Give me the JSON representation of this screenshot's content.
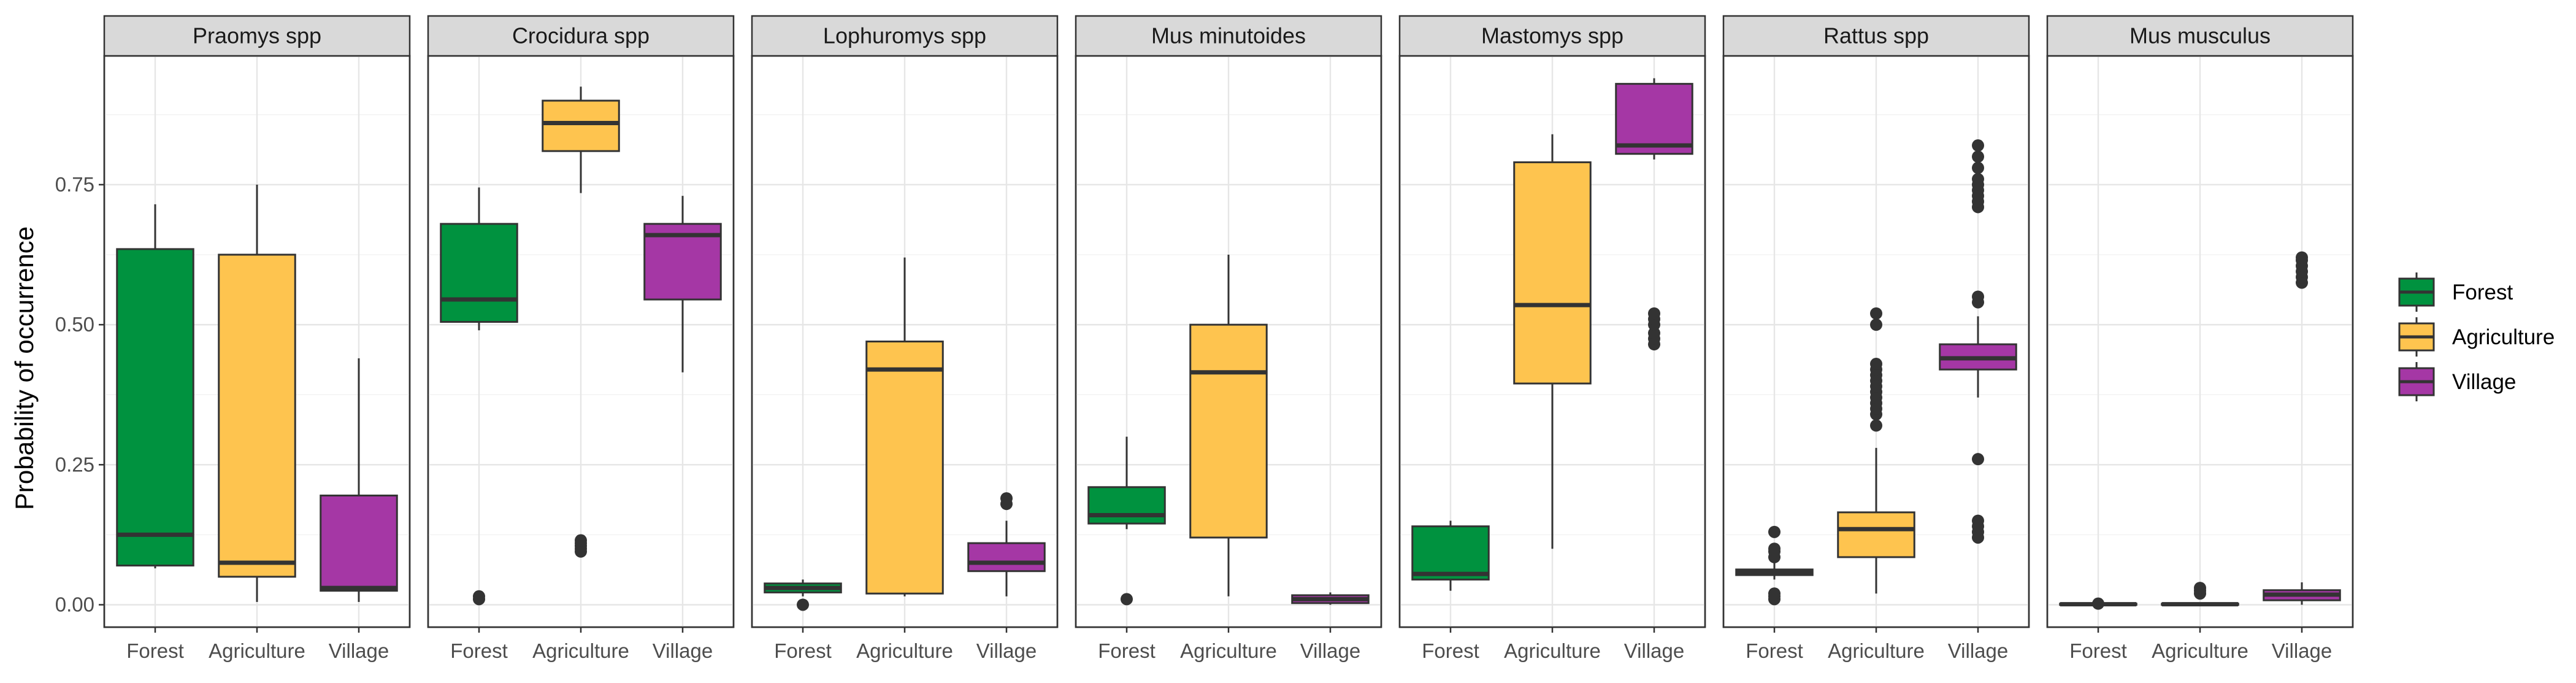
{
  "chart_data": {
    "type": "boxplot",
    "ylabel": "Probability of occurrence",
    "xlabel": "",
    "ylim": [
      -0.04,
      0.98
    ],
    "yticks": [
      0.0,
      0.25,
      0.5,
      0.75
    ],
    "ytick_labels": [
      "0.00",
      "0.25",
      "0.50",
      "0.75"
    ],
    "categories": [
      "Forest",
      "Agriculture",
      "Village"
    ],
    "colors": {
      "Forest": "#00923F",
      "Agriculture": "#FEC44F",
      "Village": "#A537A5"
    },
    "grid": true,
    "legend_position": "right",
    "legend": [
      {
        "label": "Forest",
        "color": "#00923F"
      },
      {
        "label": "Agriculture",
        "color": "#FEC44F"
      },
      {
        "label": "Village",
        "color": "#A537A5"
      }
    ],
    "panels": [
      {
        "title": "Praomys spp",
        "boxes": [
          {
            "category": "Forest",
            "q1": 0.07,
            "median": 0.125,
            "q3": 0.635,
            "whislo": 0.065,
            "whishi": 0.715,
            "outliers": []
          },
          {
            "category": "Agriculture",
            "q1": 0.05,
            "median": 0.075,
            "q3": 0.625,
            "whislo": 0.005,
            "whishi": 0.75,
            "outliers": []
          },
          {
            "category": "Village",
            "q1": 0.025,
            "median": 0.03,
            "q3": 0.195,
            "whislo": 0.005,
            "whishi": 0.44,
            "outliers": []
          }
        ]
      },
      {
        "title": "Crocidura spp",
        "boxes": [
          {
            "category": "Forest",
            "q1": 0.505,
            "median": 0.545,
            "q3": 0.68,
            "whislo": 0.49,
            "whishi": 0.745,
            "outliers": [
              0.01,
              0.015
            ]
          },
          {
            "category": "Agriculture",
            "q1": 0.81,
            "median": 0.86,
            "q3": 0.9,
            "whislo": 0.735,
            "whishi": 0.925,
            "outliers": [
              0.095,
              0.1,
              0.105,
              0.11,
              0.115
            ]
          },
          {
            "category": "Village",
            "q1": 0.545,
            "median": 0.66,
            "q3": 0.68,
            "whislo": 0.415,
            "whishi": 0.73,
            "outliers": []
          }
        ]
      },
      {
        "title": "Lophuromys spp",
        "boxes": [
          {
            "category": "Forest",
            "q1": 0.022,
            "median": 0.03,
            "q3": 0.038,
            "whislo": 0.015,
            "whishi": 0.045,
            "outliers": [
              0.0
            ]
          },
          {
            "category": "Agriculture",
            "q1": 0.02,
            "median": 0.42,
            "q3": 0.47,
            "whislo": 0.015,
            "whishi": 0.62,
            "outliers": []
          },
          {
            "category": "Village",
            "q1": 0.06,
            "median": 0.075,
            "q3": 0.11,
            "whislo": 0.015,
            "whishi": 0.15,
            "outliers": [
              0.18,
              0.19
            ]
          }
        ]
      },
      {
        "title": "Mus minutoides",
        "boxes": [
          {
            "category": "Forest",
            "q1": 0.145,
            "median": 0.16,
            "q3": 0.21,
            "whislo": 0.135,
            "whishi": 0.3,
            "outliers": [
              0.01
            ]
          },
          {
            "category": "Agriculture",
            "q1": 0.12,
            "median": 0.415,
            "q3": 0.5,
            "whislo": 0.015,
            "whishi": 0.625,
            "outliers": []
          },
          {
            "category": "Village",
            "q1": 0.003,
            "median": 0.01,
            "q3": 0.017,
            "whislo": 0.0,
            "whishi": 0.022,
            "outliers": []
          }
        ]
      },
      {
        "title": "Mastomys spp",
        "boxes": [
          {
            "category": "Forest",
            "q1": 0.045,
            "median": 0.055,
            "q3": 0.14,
            "whislo": 0.025,
            "whishi": 0.15,
            "outliers": []
          },
          {
            "category": "Agriculture",
            "q1": 0.395,
            "median": 0.535,
            "q3": 0.79,
            "whislo": 0.1,
            "whishi": 0.84,
            "outliers": []
          },
          {
            "category": "Village",
            "q1": 0.805,
            "median": 0.82,
            "q3": 0.93,
            "whislo": 0.795,
            "whishi": 0.94,
            "outliers": [
              0.465,
              0.475,
              0.485,
              0.5,
              0.51,
              0.52
            ]
          }
        ]
      },
      {
        "title": "Rattus spp",
        "boxes": [
          {
            "category": "Forest",
            "q1": 0.053,
            "median": 0.058,
            "q3": 0.063,
            "whislo": 0.045,
            "whishi": 0.075,
            "outliers": [
              0.01,
              0.015,
              0.02,
              0.085,
              0.095,
              0.1,
              0.13
            ]
          },
          {
            "category": "Agriculture",
            "q1": 0.085,
            "median": 0.135,
            "q3": 0.165,
            "whislo": 0.02,
            "whishi": 0.28,
            "outliers": [
              0.32,
              0.34,
              0.35,
              0.36,
              0.37,
              0.38,
              0.39,
              0.4,
              0.41,
              0.42,
              0.43,
              0.5,
              0.52
            ]
          },
          {
            "category": "Village",
            "q1": 0.42,
            "median": 0.44,
            "q3": 0.465,
            "whislo": 0.37,
            "whishi": 0.515,
            "outliers": [
              0.12,
              0.13,
              0.14,
              0.15,
              0.26,
              0.54,
              0.55,
              0.71,
              0.72,
              0.73,
              0.74,
              0.75,
              0.76,
              0.78,
              0.8,
              0.82
            ]
          }
        ]
      },
      {
        "title": "Mus musculus",
        "boxes": [
          {
            "category": "Forest",
            "q1": 0.0,
            "median": 0.001,
            "q3": 0.002,
            "whislo": 0.0,
            "whishi": 0.003,
            "outliers": [
              0.002
            ]
          },
          {
            "category": "Agriculture",
            "q1": 0.0,
            "median": 0.001,
            "q3": 0.002,
            "whislo": 0.0,
            "whishi": 0.004,
            "outliers": [
              0.02,
              0.025,
              0.03
            ]
          },
          {
            "category": "Village",
            "q1": 0.008,
            "median": 0.018,
            "q3": 0.026,
            "whislo": 0.0,
            "whishi": 0.04,
            "outliers": [
              0.575,
              0.585,
              0.595,
              0.605,
              0.615,
              0.62
            ]
          }
        ]
      }
    ]
  }
}
